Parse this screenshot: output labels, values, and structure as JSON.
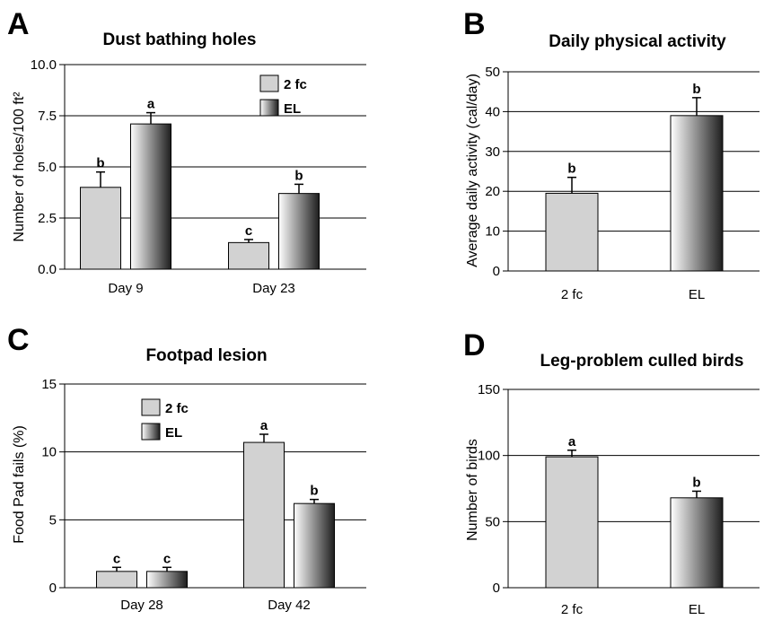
{
  "chart_data": [
    {
      "panel": "A",
      "type": "bar",
      "title": "Dust bathing holes",
      "ylabel": "Number of holes/100 ft²",
      "ylim": [
        0,
        10
      ],
      "yticks": [
        "0.0",
        "2.5",
        "5.0",
        "7.5",
        "10.0"
      ],
      "categories": [
        "Day 9",
        "Day 23"
      ],
      "legend": true,
      "series": [
        {
          "name": "2 fc",
          "values": [
            4.0,
            1.3
          ],
          "errors": [
            0.75,
            0.15
          ],
          "letters": [
            "b",
            "c"
          ]
        },
        {
          "name": "EL",
          "values": [
            7.1,
            3.7
          ],
          "errors": [
            0.55,
            0.45
          ],
          "letters": [
            "a",
            "b"
          ]
        }
      ]
    },
    {
      "panel": "B",
      "type": "bar",
      "title": "Daily physical activity",
      "ylabel": "Average daily activity (cal/day)",
      "ylim": [
        0,
        50
      ],
      "yticks": [
        "0",
        "10",
        "20",
        "30",
        "40",
        "50"
      ],
      "categories": [
        "2 fc",
        "EL"
      ],
      "legend": false,
      "series": [
        {
          "name": "2 fc",
          "values": [
            19.5,
            null
          ],
          "errors": [
            4.0,
            null
          ],
          "letters": [
            "b",
            ""
          ]
        },
        {
          "name": "EL",
          "values": [
            null,
            39.0
          ],
          "errors": [
            null,
            4.5
          ],
          "letters": [
            "",
            "b"
          ]
        }
      ]
    },
    {
      "panel": "C",
      "type": "bar",
      "title": "Footpad lesion",
      "ylabel": "Food Pad fails (%)",
      "ylim": [
        0,
        15
      ],
      "yticks": [
        "0",
        "5",
        "10",
        "15"
      ],
      "categories": [
        "Day 28",
        "Day 42"
      ],
      "legend": true,
      "series": [
        {
          "name": "2 fc",
          "values": [
            1.2,
            10.7
          ],
          "errors": [
            0.3,
            0.6
          ],
          "letters": [
            "c",
            "a"
          ]
        },
        {
          "name": "EL",
          "values": [
            1.2,
            6.2
          ],
          "errors": [
            0.3,
            0.3
          ],
          "letters": [
            "c",
            "b"
          ]
        }
      ]
    },
    {
      "panel": "D",
      "type": "bar",
      "title": "Leg-problem culled birds",
      "ylabel": "Number of birds",
      "ylim": [
        0,
        150
      ],
      "yticks": [
        "0",
        "50",
        "100",
        "150"
      ],
      "categories": [
        "2 fc",
        "EL"
      ],
      "legend": false,
      "series": [
        {
          "name": "2 fc",
          "values": [
            99,
            null
          ],
          "errors": [
            5,
            null
          ],
          "letters": [
            "a",
            ""
          ]
        },
        {
          "name": "EL",
          "values": [
            null,
            68
          ],
          "errors": [
            null,
            5
          ],
          "letters": [
            "",
            "b"
          ]
        }
      ]
    }
  ],
  "colors": {
    "gray_bar": "#d2d2d2",
    "gradient_light": "#ffffff",
    "gradient_dark": "#1e1e1e",
    "grid": "#000000"
  }
}
